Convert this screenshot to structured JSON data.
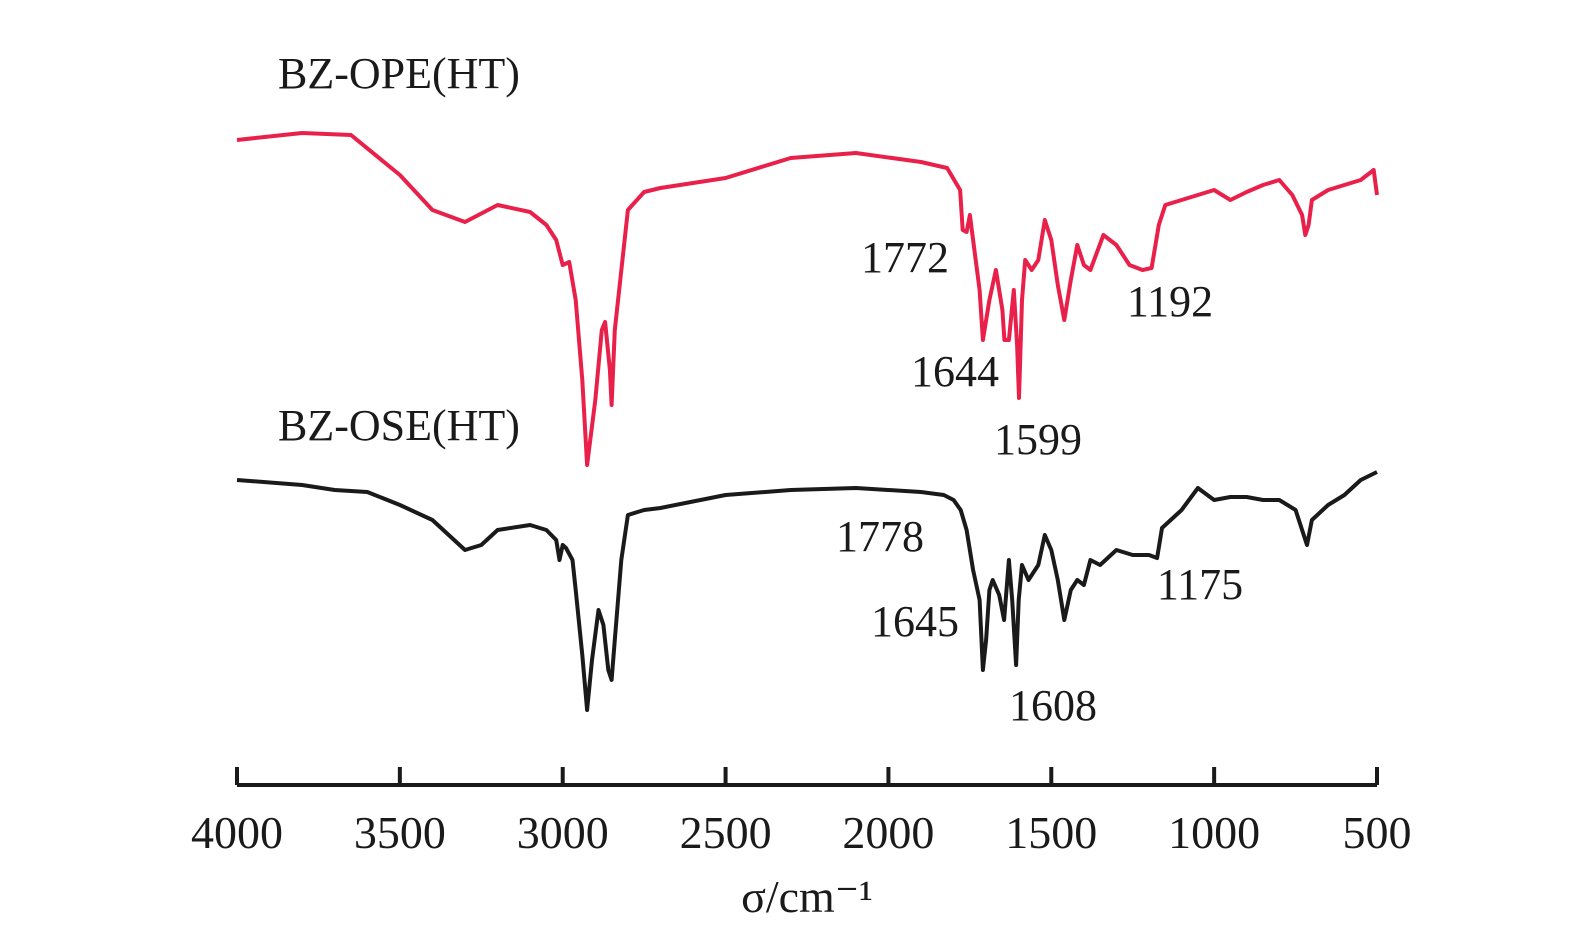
{
  "chart_data": {
    "type": "line",
    "x_label": "σ/cm⁻¹",
    "xlim": [
      4000,
      500
    ],
    "xticks": [
      4000,
      3500,
      3000,
      2500,
      2000,
      1500,
      1000,
      500
    ],
    "ylim": [
      0,
      670
    ],
    "series": [
      {
        "name": "BZ-OPE(HT)",
        "color": "#e8204a",
        "x": [
          4000,
          3800,
          3650,
          3500,
          3400,
          3300,
          3200,
          3100,
          3050,
          3020,
          3000,
          2980,
          2960,
          2940,
          2925,
          2900,
          2880,
          2870,
          2855,
          2850,
          2840,
          2800,
          2750,
          2700,
          2500,
          2300,
          2100,
          1900,
          1820,
          1780,
          1772,
          1760,
          1750,
          1740,
          1720,
          1710,
          1690,
          1670,
          1650,
          1644,
          1630,
          1615,
          1605,
          1599,
          1590,
          1580,
          1560,
          1540,
          1520,
          1500,
          1480,
          1460,
          1440,
          1420,
          1400,
          1380,
          1340,
          1300,
          1260,
          1220,
          1192,
          1170,
          1150,
          1100,
          1050,
          1000,
          950,
          900,
          850,
          800,
          760,
          730,
          720,
          710,
          700,
          650,
          600,
          550,
          510,
          500
        ],
        "values": [
          630,
          637,
          635,
          595,
          560,
          548,
          565,
          558,
          545,
          530,
          505,
          508,
          470,
          390,
          305,
          370,
          440,
          448,
          400,
          365,
          440,
          560,
          578,
          582,
          592,
          612,
          617,
          608,
          602,
          580,
          540,
          538,
          555,
          530,
          480,
          430,
          470,
          500,
          460,
          430,
          430,
          480,
          425,
          372,
          470,
          510,
          500,
          510,
          550,
          530,
          485,
          450,
          490,
          525,
          505,
          500,
          535,
          525,
          505,
          500,
          502,
          545,
          565,
          570,
          575,
          580,
          570,
          578,
          585,
          590,
          575,
          555,
          535,
          545,
          570,
          580,
          585,
          590,
          600,
          575
        ],
        "peaks": [
          1772,
          1644,
          1599,
          1192
        ]
      },
      {
        "name": "BZ-OSE(HT)",
        "color": "#1a1a1a",
        "x": [
          4000,
          3800,
          3700,
          3600,
          3500,
          3400,
          3350,
          3300,
          3250,
          3200,
          3100,
          3050,
          3020,
          3010,
          3000,
          2990,
          2970,
          2960,
          2940,
          2925,
          2910,
          2890,
          2875,
          2860,
          2850,
          2840,
          2820,
          2800,
          2750,
          2700,
          2500,
          2300,
          2100,
          1900,
          1830,
          1800,
          1778,
          1760,
          1740,
          1720,
          1710,
          1700,
          1690,
          1680,
          1660,
          1645,
          1630,
          1620,
          1608,
          1600,
          1590,
          1570,
          1540,
          1520,
          1500,
          1480,
          1460,
          1440,
          1420,
          1400,
          1380,
          1350,
          1300,
          1250,
          1200,
          1175,
          1160,
          1100,
          1050,
          1000,
          950,
          900,
          850,
          800,
          750,
          730,
          715,
          700,
          650,
          600,
          550,
          500
        ],
        "values": [
          290,
          285,
          280,
          278,
          265,
          250,
          235,
          220,
          225,
          240,
          245,
          240,
          230,
          210,
          225,
          222,
          210,
          180,
          115,
          60,
          110,
          160,
          145,
          100,
          90,
          130,
          210,
          255,
          260,
          262,
          275,
          280,
          282,
          278,
          275,
          270,
          260,
          240,
          200,
          170,
          100,
          130,
          180,
          190,
          175,
          150,
          210,
          170,
          105,
          170,
          205,
          190,
          205,
          235,
          220,
          190,
          150,
          180,
          190,
          185,
          210,
          205,
          220,
          215,
          215,
          212,
          242,
          260,
          282,
          270,
          273,
          273,
          270,
          270,
          260,
          240,
          225,
          250,
          265,
          275,
          290,
          298
        ],
        "peaks": [
          1778,
          1645,
          1608,
          1175
        ]
      }
    ]
  }
}
